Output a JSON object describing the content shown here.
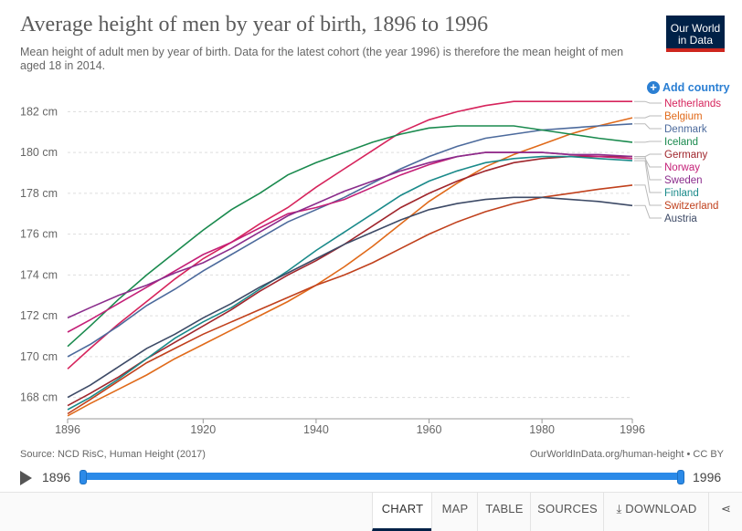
{
  "header": {
    "title": "Average height of men by year of birth, 1896 to 1996",
    "subtitle": "Mean height of adult men by year of birth. Data for the latest cohort (the year 1996) is therefore the mean height of men aged 18 in 2014.",
    "logo": "Our World in Data",
    "add_country": "Add country"
  },
  "footer": {
    "source": "Source: NCD RisC, Human Height (2017)",
    "credit": "OurWorldInData.org/human-height • CC BY"
  },
  "timeline": {
    "start": "1896",
    "end": "1996"
  },
  "tabs": [
    {
      "label": "CHART",
      "active": true
    },
    {
      "label": "MAP"
    },
    {
      "label": "TABLE"
    },
    {
      "label": "SOURCES"
    },
    {
      "label": "⤓ DOWNLOAD"
    }
  ],
  "chart_data": {
    "type": "line",
    "title": "Average height of men by year of birth, 1896 to 1996",
    "xlim": [
      1896,
      1996
    ],
    "ylim": [
      167,
      183
    ],
    "x_ticks": [
      1896,
      1920,
      1940,
      1960,
      1980,
      1996
    ],
    "y_ticks": [
      168,
      170,
      172,
      174,
      176,
      178,
      180,
      182
    ],
    "y_tick_labels": [
      "168 cm",
      "170 cm",
      "172 cm",
      "174 cm",
      "176 cm",
      "178 cm",
      "180 cm",
      "182 cm"
    ],
    "grid": "horizontal dashed",
    "legend": "right, labels at line ends",
    "series": [
      {
        "name": "Netherlands",
        "color": "#d6245c",
        "x": [
          1896,
          1900,
          1905,
          1910,
          1915,
          1920,
          1925,
          1930,
          1935,
          1940,
          1945,
          1950,
          1955,
          1960,
          1965,
          1970,
          1975,
          1980,
          1985,
          1990,
          1996
        ],
        "y": [
          169.4,
          170.4,
          171.6,
          172.7,
          173.8,
          174.8,
          175.6,
          176.5,
          177.3,
          178.3,
          179.2,
          180.1,
          181.0,
          181.6,
          182.0,
          182.3,
          182.5,
          182.5,
          182.5,
          182.5,
          182.5
        ]
      },
      {
        "name": "Belgium",
        "color": "#e06a1a",
        "x": [
          1896,
          1900,
          1905,
          1910,
          1915,
          1920,
          1925,
          1930,
          1935,
          1940,
          1945,
          1950,
          1955,
          1960,
          1965,
          1970,
          1975,
          1980,
          1985,
          1990,
          1996
        ],
        "y": [
          167.1,
          167.7,
          168.4,
          169.1,
          169.9,
          170.6,
          171.3,
          172.0,
          172.7,
          173.5,
          174.4,
          175.4,
          176.5,
          177.6,
          178.5,
          179.3,
          179.9,
          180.4,
          180.9,
          181.3,
          181.7
        ]
      },
      {
        "name": "Denmark",
        "color": "#4c6a9c",
        "x": [
          1896,
          1900,
          1905,
          1910,
          1915,
          1920,
          1925,
          1930,
          1935,
          1940,
          1945,
          1950,
          1955,
          1960,
          1965,
          1970,
          1975,
          1980,
          1985,
          1990,
          1996
        ],
        "y": [
          170.0,
          170.6,
          171.5,
          172.5,
          173.3,
          174.2,
          175.0,
          175.8,
          176.6,
          177.2,
          177.8,
          178.5,
          179.2,
          179.8,
          180.3,
          180.7,
          180.9,
          181.1,
          181.2,
          181.3,
          181.4
        ]
      },
      {
        "name": "Iceland",
        "color": "#1a8a4e",
        "x": [
          1896,
          1900,
          1905,
          1910,
          1915,
          1920,
          1925,
          1930,
          1935,
          1940,
          1945,
          1950,
          1955,
          1960,
          1965,
          1970,
          1975,
          1980,
          1985,
          1990,
          1996
        ],
        "y": [
          170.5,
          171.5,
          172.8,
          174.0,
          175.1,
          176.2,
          177.2,
          178.0,
          178.9,
          179.5,
          180.0,
          180.5,
          180.9,
          181.2,
          181.3,
          181.3,
          181.3,
          181.1,
          180.9,
          180.7,
          180.5
        ]
      },
      {
        "name": "Germany",
        "color": "#a0262c",
        "x": [
          1896,
          1900,
          1905,
          1910,
          1915,
          1920,
          1925,
          1930,
          1935,
          1940,
          1945,
          1950,
          1955,
          1960,
          1965,
          1970,
          1975,
          1980,
          1985,
          1990,
          1996
        ],
        "y": [
          167.6,
          168.2,
          169.0,
          169.9,
          170.7,
          171.5,
          172.3,
          173.2,
          174.0,
          174.7,
          175.5,
          176.4,
          177.3,
          178.0,
          178.6,
          179.1,
          179.5,
          179.7,
          179.8,
          179.8,
          179.8
        ]
      },
      {
        "name": "Norway",
        "color": "#c41f77",
        "x": [
          1896,
          1900,
          1905,
          1910,
          1915,
          1920,
          1925,
          1930,
          1935,
          1940,
          1945,
          1950,
          1955,
          1960,
          1965,
          1970,
          1975,
          1980,
          1985,
          1990,
          1996
        ],
        "y": [
          171.2,
          171.8,
          172.6,
          173.4,
          174.2,
          175.0,
          175.6,
          176.3,
          177.0,
          177.3,
          177.7,
          178.3,
          178.9,
          179.4,
          179.8,
          180.0,
          180.0,
          180.0,
          179.9,
          179.8,
          179.7
        ]
      },
      {
        "name": "Sweden",
        "color": "#8b2d8c",
        "x": [
          1896,
          1900,
          1905,
          1910,
          1915,
          1920,
          1925,
          1930,
          1935,
          1940,
          1945,
          1950,
          1955,
          1960,
          1965,
          1970,
          1975,
          1980,
          1985,
          1990,
          1996
        ],
        "y": [
          171.9,
          172.4,
          173.0,
          173.5,
          174.1,
          174.6,
          175.3,
          176.1,
          176.9,
          177.5,
          178.1,
          178.6,
          179.1,
          179.5,
          179.8,
          180.0,
          180.0,
          180.0,
          179.9,
          179.9,
          179.8
        ]
      },
      {
        "name": "Finland",
        "color": "#1a8a8a",
        "x": [
          1896,
          1900,
          1905,
          1910,
          1915,
          1920,
          1925,
          1930,
          1935,
          1940,
          1945,
          1950,
          1955,
          1960,
          1965,
          1970,
          1975,
          1980,
          1985,
          1990,
          1996
        ],
        "y": [
          167.4,
          168.0,
          168.9,
          169.9,
          170.9,
          171.7,
          172.4,
          173.3,
          174.2,
          175.2,
          176.1,
          177.0,
          177.9,
          178.6,
          179.1,
          179.5,
          179.7,
          179.8,
          179.8,
          179.7,
          179.6
        ]
      },
      {
        "name": "Switzerland",
        "color": "#c0401c",
        "x": [
          1896,
          1900,
          1905,
          1910,
          1915,
          1920,
          1925,
          1930,
          1935,
          1940,
          1945,
          1950,
          1955,
          1960,
          1965,
          1970,
          1975,
          1980,
          1985,
          1990,
          1996
        ],
        "y": [
          167.2,
          167.9,
          168.8,
          169.7,
          170.4,
          171.1,
          171.7,
          172.3,
          172.9,
          173.5,
          174.0,
          174.6,
          175.3,
          176.0,
          176.6,
          177.1,
          177.5,
          177.8,
          178.0,
          178.2,
          178.4
        ]
      },
      {
        "name": "Austria",
        "color": "#3d4a66",
        "x": [
          1896,
          1900,
          1905,
          1910,
          1915,
          1920,
          1925,
          1930,
          1935,
          1940,
          1945,
          1950,
          1955,
          1960,
          1965,
          1970,
          1975,
          1980,
          1985,
          1990,
          1996
        ],
        "y": [
          168.0,
          168.6,
          169.5,
          170.4,
          171.1,
          171.9,
          172.6,
          173.4,
          174.1,
          174.8,
          175.5,
          176.1,
          176.7,
          177.2,
          177.5,
          177.7,
          177.8,
          177.8,
          177.7,
          177.6,
          177.4
        ]
      }
    ]
  }
}
